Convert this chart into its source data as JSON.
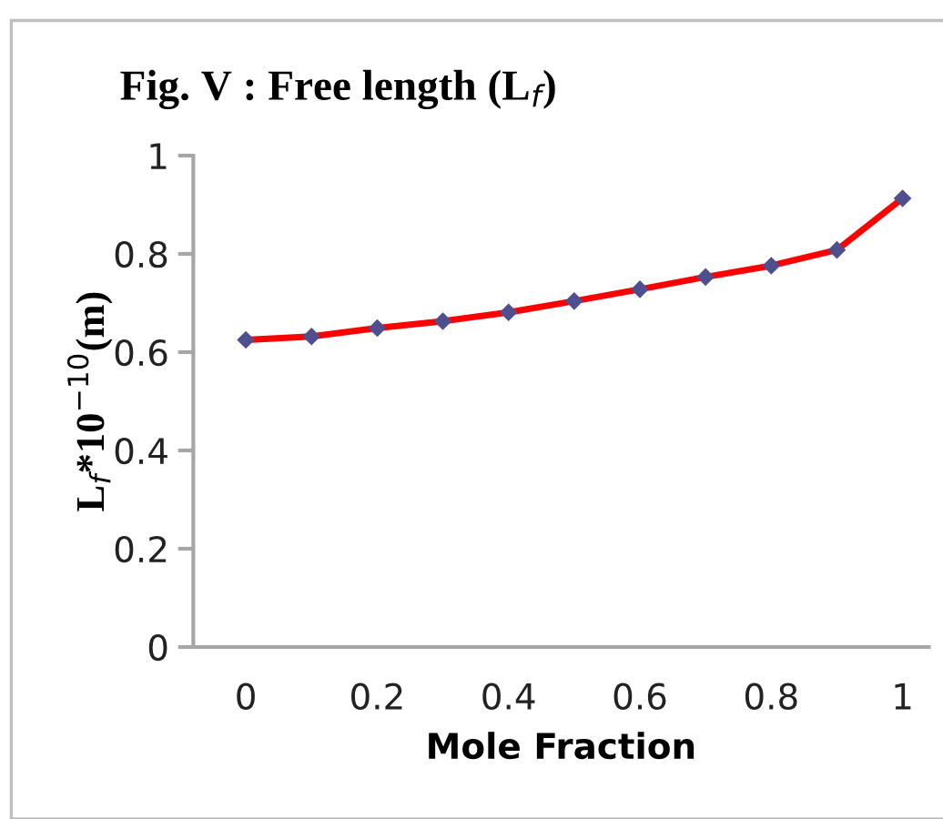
{
  "chart_data": {
    "type": "line",
    "title": "Fig. V : Free length (L$_{f}$)",
    "xlabel": "Mole Fraction",
    "ylabel": "L$_{f}$*10$^{−10}$(m)",
    "x": [
      0,
      0.1,
      0.2,
      0.3,
      0.4,
      0.5,
      0.6,
      0.7,
      0.8,
      0.9,
      1
    ],
    "series": [
      {
        "color": "#ff0000",
        "values": [
          0.625,
          0.632,
          0.649,
          0.663,
          0.681,
          0.704,
          0.728,
          0.753,
          0.776,
          0.808,
          0.913
        ]
      }
    ],
    "xlim": [
      -0.08,
      1.04
    ],
    "ylim": [
      0,
      1
    ],
    "xticks": [
      0,
      0.2,
      0.4,
      0.6,
      0.8,
      1
    ],
    "yticks": [
      0,
      0.2,
      0.4,
      0.6,
      0.8,
      1
    ],
    "grid": false,
    "legend": false,
    "marker": "diamond",
    "line_style": "solid"
  }
}
